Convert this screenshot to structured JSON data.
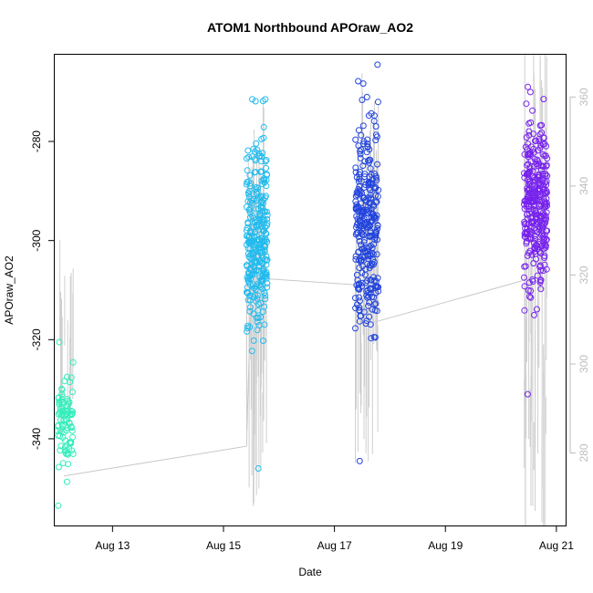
{
  "chart_data": {
    "type": "scatter",
    "title": "ATOM1 Northbound APOraw_AO2",
    "xlabel": "Date",
    "ylabel": "APOraw_AO2",
    "x_axis": {
      "range": [
        "2023-08-11T23:00",
        "2023-08-21T04:00"
      ],
      "ticks": [
        {
          "value": "2023-08-13",
          "label": "Aug 13"
        },
        {
          "value": "2023-08-15",
          "label": "Aug 15"
        },
        {
          "value": "2023-08-17",
          "label": "Aug 17"
        },
        {
          "value": "2023-08-19",
          "label": "Aug 19"
        },
        {
          "value": "2023-08-21",
          "label": "Aug 21"
        }
      ]
    },
    "y_axis_left": {
      "range": [
        -357.5,
        -262.5
      ],
      "ticks": [
        -340,
        -320,
        -300,
        -280
      ]
    },
    "y_axis_right": {
      "range": [
        263.7,
        369.5
      ],
      "ticks": [
        280,
        300,
        320,
        340,
        360
      ],
      "color": "#bdbdbd"
    },
    "grid": false,
    "legend": "none",
    "mean_line": {
      "color": "#c8c8c8",
      "points": [
        {
          "x": "2023-08-12T03:00",
          "y": -347.5
        },
        {
          "x": "2023-08-15T10:00",
          "y": -341.5
        },
        {
          "x": "2023-08-15T12:00",
          "y": -307.5
        },
        {
          "x": "2023-08-17T12:00",
          "y": -309.0
        },
        {
          "x": "2023-08-17T17:00",
          "y": -316.5
        },
        {
          "x": "2023-08-20T14:00",
          "y": -307.5
        }
      ]
    },
    "series": [
      {
        "color": "#33eebb",
        "x_range": [
          "2023-08-12T00:00",
          "2023-08-12T07:00"
        ],
        "y_range": [
          -353.5,
          -320.5
        ],
        "y_center": -336.5,
        "count": 90,
        "right_axis_band": [
          290,
          320
        ]
      },
      {
        "color": "#22bbee",
        "x_range": [
          "2023-08-15T10:00",
          "2023-08-15T19:00"
        ],
        "y_range": [
          -346.0,
          -271.5
        ],
        "y_center": -300.0,
        "count": 300,
        "right_axis_band": [
          285,
          345
        ]
      },
      {
        "color": "#2244dd",
        "x_range": [
          "2023-08-17T09:00",
          "2023-08-17T19:00"
        ],
        "y_range": [
          -344.5,
          -264.5
        ],
        "y_center": -297.0,
        "count": 300,
        "right_axis_band": [
          295,
          350
        ]
      },
      {
        "color": "#7722ee",
        "x_range": [
          "2023-08-20T10:00",
          "2023-08-20T20:00"
        ],
        "y_range": [
          -331.0,
          -269.0
        ],
        "y_center": -292.0,
        "count": 320,
        "right_axis_band": [
          275,
          360
        ]
      }
    ]
  }
}
